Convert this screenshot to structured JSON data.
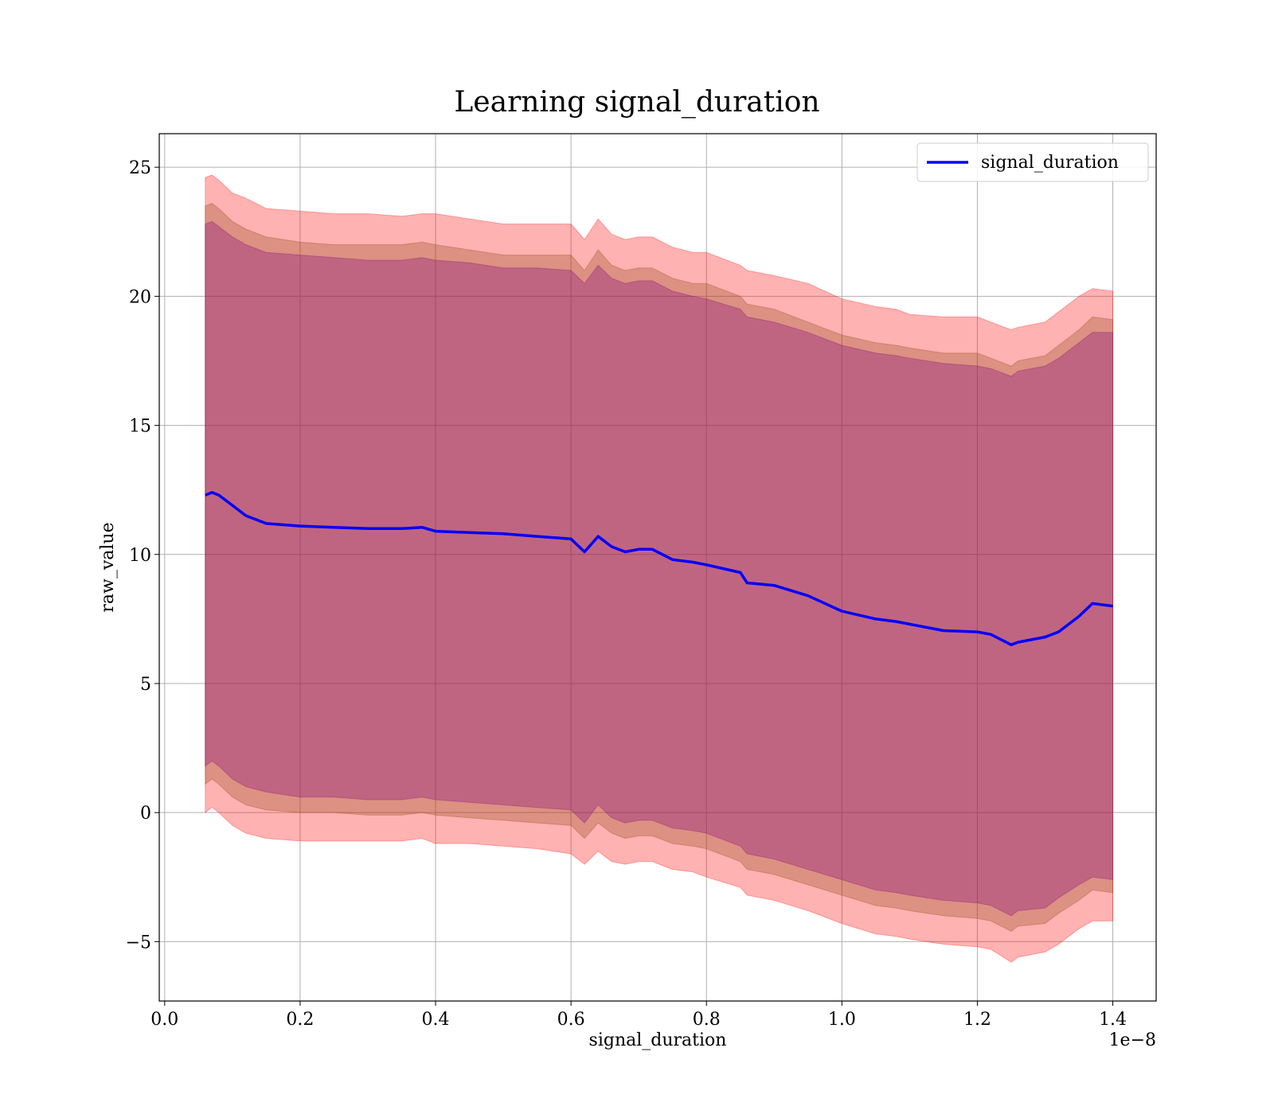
{
  "chart_data": {
    "type": "line",
    "title": "Learning signal_duration",
    "xlabel": "signal_duration",
    "ylabel": "raw_value",
    "x_offset_text": "1e−8",
    "xlim": [
      -0.008,
      1.464
    ],
    "ylim": [
      -7.3,
      26.3
    ],
    "xticks": [
      0.0,
      0.2,
      0.4,
      0.6,
      0.8,
      1.0,
      1.2,
      1.4
    ],
    "xtick_labels": [
      "0.0",
      "0.2",
      "0.4",
      "0.6",
      "0.8",
      "1.0",
      "1.2",
      "1.4"
    ],
    "yticks": [
      -5,
      0,
      5,
      10,
      15,
      20,
      25
    ],
    "ytick_labels": [
      "−5",
      "0",
      "5",
      "10",
      "15",
      "20",
      "25"
    ],
    "grid": true,
    "legend_position": "top-right",
    "colors": {
      "line": "#0000ff",
      "band_outer": "#ff0000",
      "band_middle": "#8b4513",
      "band_inner": "#800080"
    },
    "series": [
      {
        "name": "signal_duration",
        "x": [
          0.06,
          0.07,
          0.08,
          0.1,
          0.12,
          0.15,
          0.2,
          0.25,
          0.3,
          0.35,
          0.38,
          0.4,
          0.45,
          0.5,
          0.55,
          0.6,
          0.62,
          0.64,
          0.66,
          0.68,
          0.7,
          0.72,
          0.75,
          0.78,
          0.8,
          0.85,
          0.86,
          0.9,
          0.95,
          1.0,
          1.05,
          1.08,
          1.1,
          1.15,
          1.2,
          1.22,
          1.25,
          1.26,
          1.3,
          1.32,
          1.35,
          1.37,
          1.4
        ],
        "y": [
          12.3,
          12.4,
          12.3,
          11.9,
          11.5,
          11.2,
          11.1,
          11.05,
          11.0,
          11.0,
          11.05,
          10.9,
          10.85,
          10.8,
          10.7,
          10.6,
          10.1,
          10.7,
          10.3,
          10.1,
          10.2,
          10.2,
          9.8,
          9.7,
          9.6,
          9.3,
          8.9,
          8.8,
          8.4,
          7.8,
          7.5,
          7.4,
          7.3,
          7.05,
          7.0,
          6.9,
          6.5,
          6.6,
          6.8,
          7.0,
          7.6,
          8.1,
          8.0
        ]
      }
    ],
    "bands": [
      {
        "color": "#ff0000",
        "upper": [
          24.6,
          24.7,
          24.5,
          24.0,
          23.8,
          23.4,
          23.3,
          23.2,
          23.2,
          23.1,
          23.2,
          23.2,
          23.0,
          22.8,
          22.8,
          22.8,
          22.2,
          23.0,
          22.4,
          22.2,
          22.3,
          22.3,
          21.9,
          21.7,
          21.7,
          21.2,
          21.0,
          20.8,
          20.5,
          19.9,
          19.6,
          19.5,
          19.3,
          19.2,
          19.2,
          19.0,
          18.7,
          18.8,
          19.0,
          19.4,
          20.0,
          20.3,
          20.2
        ],
        "lower": [
          0.0,
          0.2,
          0.0,
          -0.5,
          -0.8,
          -1.0,
          -1.1,
          -1.1,
          -1.1,
          -1.1,
          -1.0,
          -1.2,
          -1.2,
          -1.3,
          -1.4,
          -1.6,
          -2.0,
          -1.5,
          -1.9,
          -2.0,
          -1.9,
          -1.9,
          -2.2,
          -2.3,
          -2.5,
          -2.9,
          -3.2,
          -3.4,
          -3.8,
          -4.3,
          -4.7,
          -4.8,
          -4.9,
          -5.1,
          -5.2,
          -5.3,
          -5.8,
          -5.6,
          -5.4,
          -5.1,
          -4.5,
          -4.2,
          -4.2
        ]
      },
      {
        "color": "#8b4513",
        "upper": [
          23.5,
          23.6,
          23.4,
          22.9,
          22.6,
          22.3,
          22.1,
          22.0,
          22.0,
          22.0,
          22.1,
          22.0,
          21.8,
          21.6,
          21.6,
          21.6,
          21.0,
          21.8,
          21.2,
          21.0,
          21.1,
          21.1,
          20.7,
          20.5,
          20.5,
          20.0,
          19.7,
          19.5,
          19.0,
          18.5,
          18.2,
          18.1,
          18.0,
          17.8,
          17.8,
          17.6,
          17.3,
          17.5,
          17.7,
          18.1,
          18.7,
          19.2,
          19.1
        ],
        "lower": [
          1.1,
          1.3,
          1.1,
          0.6,
          0.3,
          0.1,
          0.0,
          0.0,
          -0.1,
          -0.1,
          0.0,
          -0.1,
          -0.2,
          -0.3,
          -0.4,
          -0.5,
          -1.0,
          -0.4,
          -0.8,
          -1.0,
          -0.9,
          -0.9,
          -1.2,
          -1.3,
          -1.4,
          -1.9,
          -2.2,
          -2.4,
          -2.8,
          -3.2,
          -3.6,
          -3.7,
          -3.8,
          -4.0,
          -4.1,
          -4.2,
          -4.6,
          -4.4,
          -4.3,
          -3.9,
          -3.4,
          -3.0,
          -3.1
        ]
      },
      {
        "color": "#800080",
        "upper": [
          22.8,
          22.9,
          22.7,
          22.3,
          22.0,
          21.7,
          21.6,
          21.5,
          21.4,
          21.4,
          21.5,
          21.4,
          21.3,
          21.1,
          21.1,
          21.0,
          20.5,
          21.2,
          20.7,
          20.5,
          20.6,
          20.6,
          20.2,
          20.0,
          19.9,
          19.5,
          19.2,
          19.0,
          18.6,
          18.1,
          17.8,
          17.7,
          17.6,
          17.4,
          17.3,
          17.2,
          16.9,
          17.1,
          17.3,
          17.6,
          18.2,
          18.6,
          18.6
        ],
        "lower": [
          1.8,
          2.0,
          1.8,
          1.3,
          1.0,
          0.8,
          0.6,
          0.6,
          0.5,
          0.5,
          0.6,
          0.5,
          0.4,
          0.3,
          0.2,
          0.1,
          -0.4,
          0.3,
          -0.2,
          -0.4,
          -0.3,
          -0.3,
          -0.6,
          -0.7,
          -0.8,
          -1.3,
          -1.6,
          -1.8,
          -2.2,
          -2.6,
          -3.0,
          -3.1,
          -3.2,
          -3.4,
          -3.5,
          -3.6,
          -4.0,
          -3.8,
          -3.7,
          -3.3,
          -2.8,
          -2.5,
          -2.6
        ]
      }
    ]
  }
}
